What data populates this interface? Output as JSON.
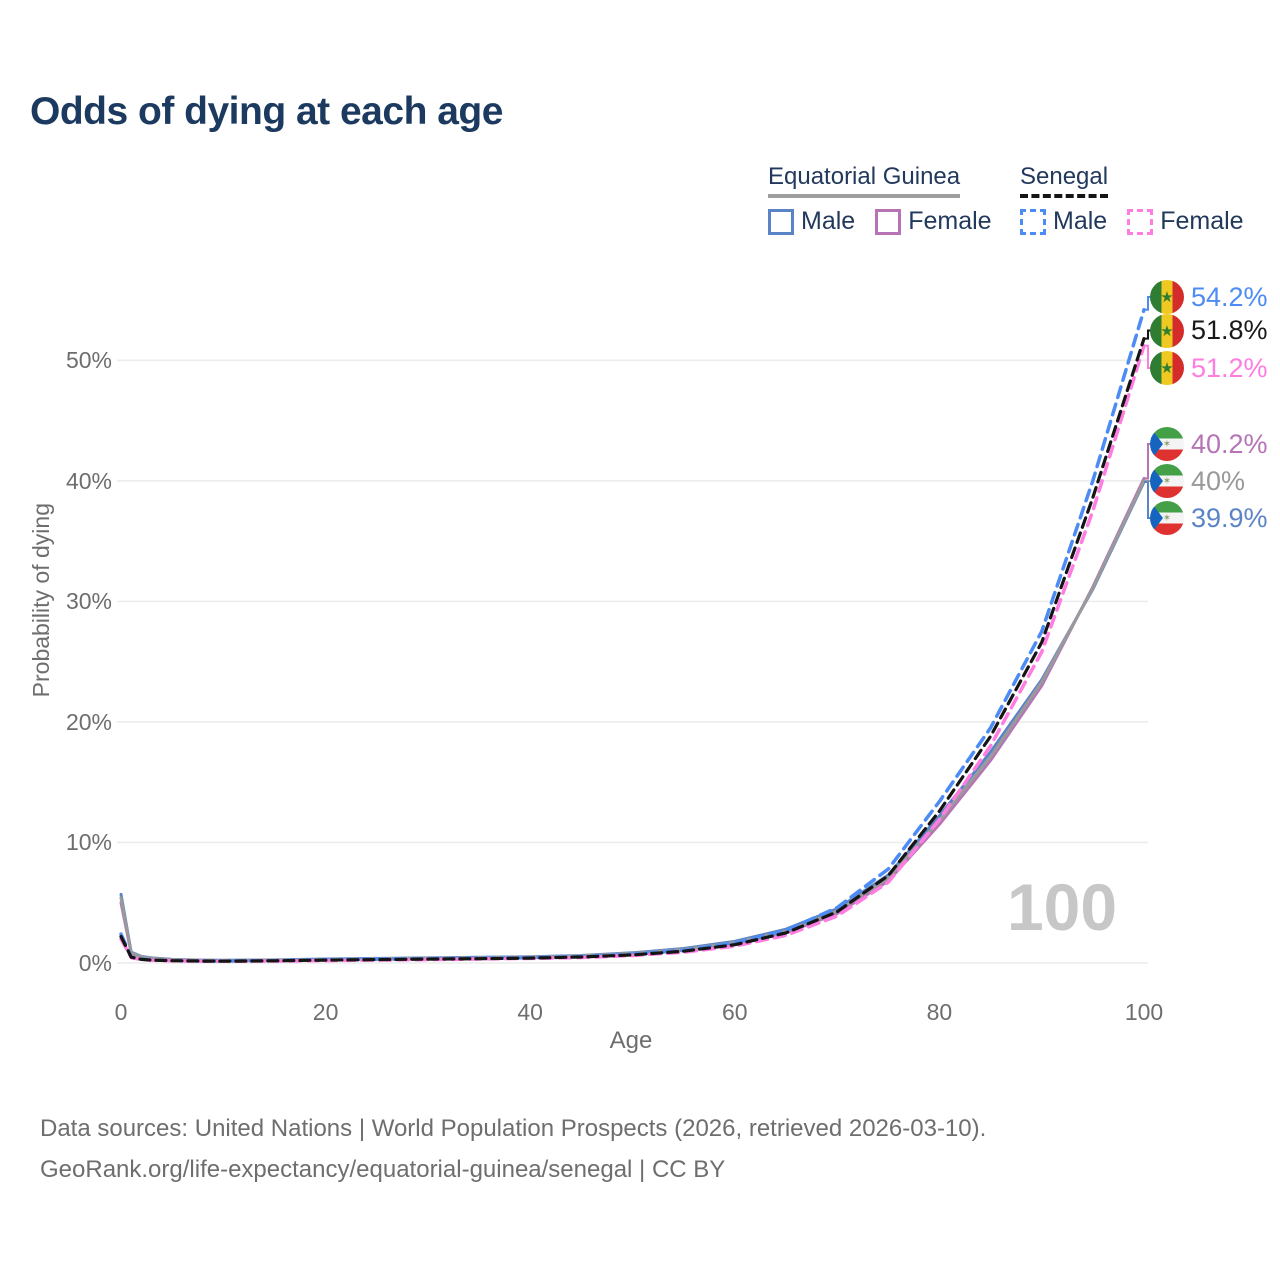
{
  "title": "Odds of dying at each age",
  "legend": {
    "groups": [
      {
        "name": "Equatorial Guinea",
        "line_style": "solid",
        "underline_color": "#9e9e9e",
        "items": [
          {
            "label": "Male",
            "color": "#5b84c7"
          },
          {
            "label": "Female",
            "color": "#b674b6"
          }
        ]
      },
      {
        "name": "Senegal",
        "line_style": "dashed",
        "underline_color": "#151515",
        "items": [
          {
            "label": "Male",
            "color": "#4d8bf5"
          },
          {
            "label": "Female",
            "color": "#ff7ce1"
          }
        ]
      }
    ]
  },
  "watermark": "100",
  "footer": {
    "line1": "Data sources: United Nations | World Population Prospects (2026, retrieved 2026-03-10).",
    "line2": "GeoRank.org/life-expectancy/equatorial-guinea/senegal | CC BY"
  },
  "chart_data": {
    "type": "line",
    "title": "Odds of dying at each age",
    "xlabel": "Age",
    "ylabel": "Probability of dying",
    "xlim": [
      0,
      100
    ],
    "ylim": [
      0,
      55
    ],
    "grid": true,
    "legend_position": "top-right",
    "x_ticks": [
      "0",
      "20",
      "40",
      "60",
      "80",
      "100"
    ],
    "y_ticks": [
      "0%",
      "10%",
      "20%",
      "30%",
      "40%",
      "50%"
    ],
    "x": [
      0,
      1,
      2,
      3,
      5,
      8,
      10,
      15,
      20,
      25,
      30,
      35,
      40,
      45,
      50,
      55,
      60,
      65,
      70,
      75,
      80,
      85,
      90,
      95,
      100
    ],
    "series": [
      {
        "name": "Equatorial Guinea Male",
        "country": "Equatorial Guinea",
        "sex": "Male",
        "color": "#5b84c7",
        "dasharray": "",
        "width": 3,
        "values": [
          5.7,
          0.9,
          0.55,
          0.42,
          0.3,
          0.24,
          0.22,
          0.26,
          0.33,
          0.38,
          0.42,
          0.47,
          0.52,
          0.62,
          0.85,
          1.2,
          1.8,
          2.8,
          4.5,
          7.3,
          12.2,
          17.5,
          23.5,
          31.0,
          39.9
        ],
        "end_label": "39.9%"
      },
      {
        "name": "Equatorial Guinea Female",
        "country": "Equatorial Guinea",
        "sex": "Female",
        "color": "#b674b6",
        "dasharray": "",
        "width": 3,
        "values": [
          5.0,
          0.8,
          0.5,
          0.38,
          0.27,
          0.21,
          0.2,
          0.22,
          0.27,
          0.31,
          0.36,
          0.4,
          0.46,
          0.56,
          0.75,
          1.05,
          1.6,
          2.5,
          4.1,
          6.8,
          11.5,
          16.8,
          23.0,
          31.2,
          40.2
        ],
        "end_label": "40.2%"
      },
      {
        "name": "Equatorial Guinea Both sexes",
        "country": "Equatorial Guinea",
        "sex": "Both",
        "color": "#9a9a9a",
        "dasharray": "",
        "width": 3,
        "values": [
          5.4,
          0.85,
          0.52,
          0.4,
          0.28,
          0.22,
          0.21,
          0.24,
          0.3,
          0.35,
          0.39,
          0.44,
          0.49,
          0.59,
          0.8,
          1.12,
          1.7,
          2.65,
          4.3,
          7.05,
          11.8,
          17.1,
          23.3,
          31.1,
          40.0
        ],
        "end_label": "40%"
      },
      {
        "name": "Senegal Male",
        "country": "Senegal",
        "sex": "Male",
        "color": "#4d8bf5",
        "dasharray": "11 7",
        "width": 3.5,
        "values": [
          2.4,
          0.5,
          0.32,
          0.26,
          0.2,
          0.17,
          0.16,
          0.2,
          0.27,
          0.32,
          0.35,
          0.39,
          0.44,
          0.53,
          0.72,
          1.05,
          1.65,
          2.7,
          4.6,
          7.8,
          13.4,
          19.5,
          27.5,
          40.0,
          54.2
        ],
        "end_label": "54.2%"
      },
      {
        "name": "Senegal Female",
        "country": "Senegal",
        "sex": "Female",
        "color": "#ff7ce1",
        "dasharray": "11 7",
        "width": 3.5,
        "values": [
          2.0,
          0.45,
          0.29,
          0.23,
          0.18,
          0.15,
          0.14,
          0.16,
          0.2,
          0.24,
          0.28,
          0.33,
          0.38,
          0.46,
          0.62,
          0.9,
          1.4,
          2.3,
          3.9,
          6.7,
          11.9,
          18.0,
          25.8,
          37.5,
          51.2
        ],
        "end_label": "51.2%"
      },
      {
        "name": "Senegal Both sexes",
        "country": "Senegal",
        "sex": "Both",
        "color": "#151515",
        "dasharray": "10 6",
        "width": 3.2,
        "values": [
          2.2,
          0.48,
          0.3,
          0.24,
          0.19,
          0.16,
          0.15,
          0.18,
          0.24,
          0.28,
          0.32,
          0.36,
          0.41,
          0.5,
          0.67,
          0.98,
          1.52,
          2.5,
          4.25,
          7.25,
          12.6,
          18.8,
          26.6,
          38.6,
          51.8
        ],
        "end_label": "51.8%"
      }
    ],
    "end_labels": [
      {
        "text": "54.2%",
        "color": "#4d8bf5",
        "flag": "sn",
        "series": 3
      },
      {
        "text": "51.8%",
        "color": "#1a1a1a",
        "flag": "sn",
        "series": 5
      },
      {
        "text": "51.2%",
        "color": "#ff7ce1",
        "flag": "sn",
        "series": 4
      },
      {
        "text": "40.2%",
        "color": "#b674b6",
        "flag": "gq",
        "series": 1
      },
      {
        "text": "40%",
        "color": "#999999",
        "flag": "gq",
        "series": 2
      },
      {
        "text": "39.9%",
        "color": "#5b84c7",
        "flag": "gq",
        "series": 0
      }
    ]
  }
}
